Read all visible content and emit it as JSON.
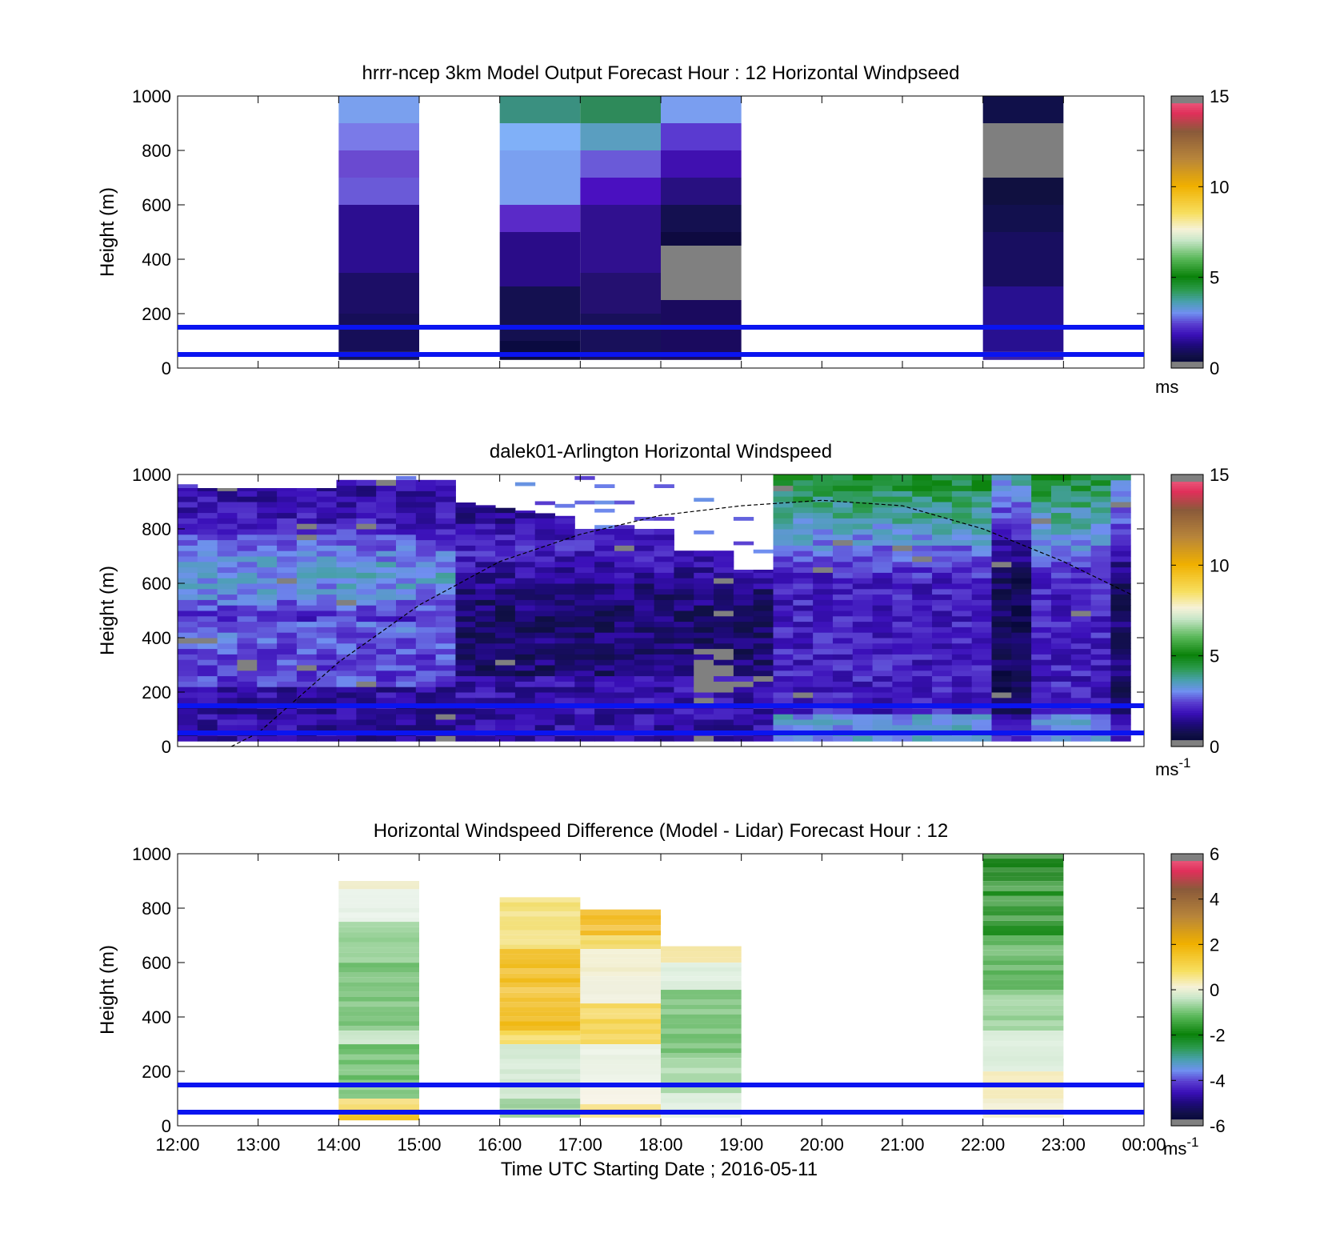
{
  "x_ticks": [
    "12:00",
    "13:00",
    "14:00",
    "15:00",
    "16:00",
    "17:00",
    "18:00",
    "19:00",
    "20:00",
    "21:00",
    "22:00",
    "23:00",
    "00:00"
  ],
  "xlabel": "Time UTC  Starting Date ; 2016-05-11",
  "blue_lines_height_m": [
    50,
    150
  ],
  "colormap": [
    "#7f7f7f",
    "#101045",
    "#1e0a7a",
    "#3a0fb8",
    "#5a3fd0",
    "#6f8ff0",
    "#3aa0a0",
    "#1a8a1a",
    "#0a7a0a",
    "#5ab85a",
    "#c8e6c8",
    "#f0f0d8",
    "#f7df60",
    "#f0b000",
    "#c08a30",
    "#8a5a3a",
    "#e0305a",
    "#f06080",
    "#7f7f7f"
  ],
  "chart_data": [
    {
      "type": "heatmap",
      "title": "hrrr-ncep 3km Model Output   Forecast Hour : 12 Horizontal Windpseed",
      "ylabel": "Height (m)",
      "ylim": [
        0,
        1000
      ],
      "y_ticks": [
        "0",
        "200",
        "400",
        "600",
        "800",
        "1000"
      ],
      "colorbar": {
        "ticks": [
          "0",
          "5",
          "10",
          "15"
        ],
        "range": [
          0,
          15
        ],
        "unit": "ms"
      },
      "columns": [
        {
          "x_start": "14:00",
          "x_end": "15:00",
          "cells": [
            [
              30,
              60,
              "#141458"
            ],
            [
              60,
              200,
              "#160e58"
            ],
            [
              200,
              350,
              "#1c0e66"
            ],
            [
              350,
              600,
              "#2c0e90"
            ],
            [
              600,
              700,
              "#6a5ad8"
            ],
            [
              700,
              800,
              "#6a4ad0"
            ],
            [
              800,
              900,
              "#7a7ae8"
            ],
            [
              900,
              1000,
              "#7aa0ee"
            ]
          ]
        },
        {
          "x_start": "16:00",
          "x_end": "17:00",
          "cells": [
            [
              30,
              100,
              "#0a0a40"
            ],
            [
              100,
              300,
              "#141050"
            ],
            [
              300,
              500,
              "#2a0c88"
            ],
            [
              500,
              600,
              "#5a2ac8"
            ],
            [
              600,
              800,
              "#7aa0f0"
            ],
            [
              800,
              900,
              "#80b0f8"
            ],
            [
              900,
              1000,
              "#3a9080"
            ]
          ]
        },
        {
          "x_start": "17:00",
          "x_end": "18:00",
          "cells": [
            [
              30,
              200,
              "#18105a"
            ],
            [
              200,
              350,
              "#241070"
            ],
            [
              350,
              600,
              "#30108f"
            ],
            [
              600,
              700,
              "#4a10c0"
            ],
            [
              700,
              800,
              "#6a5ad8"
            ],
            [
              800,
              900,
              "#5a9ec0"
            ],
            [
              900,
              1000,
              "#2e8a5a"
            ]
          ]
        },
        {
          "x_start": "18:00",
          "x_end": "19:00",
          "cells": [
            [
              30,
              250,
              "#1a0a5e"
            ],
            [
              250,
              450,
              "#808080"
            ],
            [
              450,
              500,
              "#0e0a40"
            ],
            [
              500,
              600,
              "#141050"
            ],
            [
              600,
              700,
              "#281080"
            ],
            [
              700,
              800,
              "#4010b0"
            ],
            [
              800,
              900,
              "#5a3ad0"
            ],
            [
              900,
              1000,
              "#7a9ef0"
            ]
          ]
        },
        {
          "x_start": "22:00",
          "x_end": "23:00",
          "cells": [
            [
              30,
              60,
              "#3a20a8"
            ],
            [
              60,
              300,
              "#281090"
            ],
            [
              300,
              500,
              "#180e60"
            ],
            [
              500,
              600,
              "#12104e"
            ],
            [
              600,
              700,
              "#101040"
            ],
            [
              700,
              900,
              "#7f7f7f"
            ],
            [
              900,
              1000,
              "#10104a"
            ]
          ]
        }
      ]
    },
    {
      "type": "heatmap",
      "title": "dalek01-Arlington  Horizontal Windspeed",
      "ylabel": "Height (m)",
      "ylim": [
        0,
        1000
      ],
      "y_ticks": [
        "0",
        "200",
        "400",
        "600",
        "800",
        "1000"
      ],
      "colorbar": {
        "ticks": [
          "0",
          "5",
          "10",
          "15"
        ],
        "range": [
          0,
          15
        ],
        "unit": "ms",
        "unit_exp": "-1"
      },
      "x_range": [
        "12:00",
        "23:50"
      ],
      "columns_count": 48,
      "curve": [
        [
          "12:40",
          0
        ],
        [
          "13:00",
          50
        ],
        [
          "14:00",
          310
        ],
        [
          "15:00",
          520
        ],
        [
          "16:00",
          680
        ],
        [
          "17:00",
          780
        ],
        [
          "18:00",
          850
        ],
        [
          "19:00",
          885
        ],
        [
          "20:00",
          905
        ],
        [
          "21:00",
          885
        ],
        [
          "22:00",
          800
        ],
        [
          "23:00",
          680
        ],
        [
          "23:50",
          560
        ]
      ]
    },
    {
      "type": "heatmap",
      "title": "Horizontal Windspeed Difference (Model - Lidar) Forecast Hour : 12",
      "ylabel": "Height (m)",
      "ylim": [
        0,
        1000
      ],
      "y_ticks": [
        "0",
        "200",
        "400",
        "600",
        "800",
        "1000"
      ],
      "colorbar": {
        "ticks": [
          "-6",
          "-4",
          "-2",
          "0",
          "2",
          "4",
          "6"
        ],
        "range": [
          -6,
          6
        ],
        "unit": "ms",
        "unit_exp": "-1"
      },
      "columns": [
        {
          "x_start": "14:00",
          "x_end": "15:00",
          "cells": [
            [
              20,
              60,
              "#f0b800"
            ],
            [
              60,
              100,
              "#f6dc70"
            ],
            [
              100,
              150,
              "#7cc47c"
            ],
            [
              150,
              300,
              "#5ab65a"
            ],
            [
              300,
              350,
              "#c8e6c8"
            ],
            [
              350,
              600,
              "#6cbc6c"
            ],
            [
              600,
              750,
              "#8ccc8c"
            ],
            [
              750,
              870,
              "#e4f0e4"
            ],
            [
              870,
              900,
              "#f0ecc8"
            ]
          ]
        },
        {
          "x_start": "16:00",
          "x_end": "17:00",
          "cells": [
            [
              30,
              100,
              "#8cc88c"
            ],
            [
              100,
              300,
              "#d0e8d0"
            ],
            [
              300,
              350,
              "#f6d850"
            ],
            [
              350,
              650,
              "#f0b810"
            ],
            [
              650,
              840,
              "#f2de70"
            ]
          ]
        },
        {
          "x_start": "17:00",
          "x_end": "18:00",
          "cells": [
            [
              30,
              80,
              "#f6dc70"
            ],
            [
              80,
              150,
              "#f4f0e0"
            ],
            [
              150,
              300,
              "#e8f0e0"
            ],
            [
              300,
              450,
              "#f4d040"
            ],
            [
              450,
              550,
              "#eeeed8"
            ],
            [
              550,
              650,
              "#f0ecc8"
            ],
            [
              650,
              700,
              "#f2d860"
            ],
            [
              700,
              795,
              "#f0b000"
            ]
          ]
        },
        {
          "x_start": "18:00",
          "x_end": "19:00",
          "cells": [
            [
              30,
              120,
              "#dceedc"
            ],
            [
              120,
              250,
              "#a8d8a8"
            ],
            [
              250,
              500,
              "#6cbc6c"
            ],
            [
              500,
              600,
              "#d8ecd8"
            ],
            [
              600,
              660,
              "#f2e090"
            ]
          ]
        },
        {
          "x_start": "22:00",
          "x_end": "23:00",
          "cells": [
            [
              30,
              100,
              "#f0ecc8"
            ],
            [
              100,
              200,
              "#f4e8b0"
            ],
            [
              200,
              350,
              "#d8ecd8"
            ],
            [
              350,
              500,
              "#8ccc8c"
            ],
            [
              500,
              700,
              "#4aaa4a"
            ],
            [
              700,
              900,
              "#1a8a1a"
            ],
            [
              900,
              1000,
              "#0a7a0a"
            ]
          ]
        }
      ]
    }
  ]
}
